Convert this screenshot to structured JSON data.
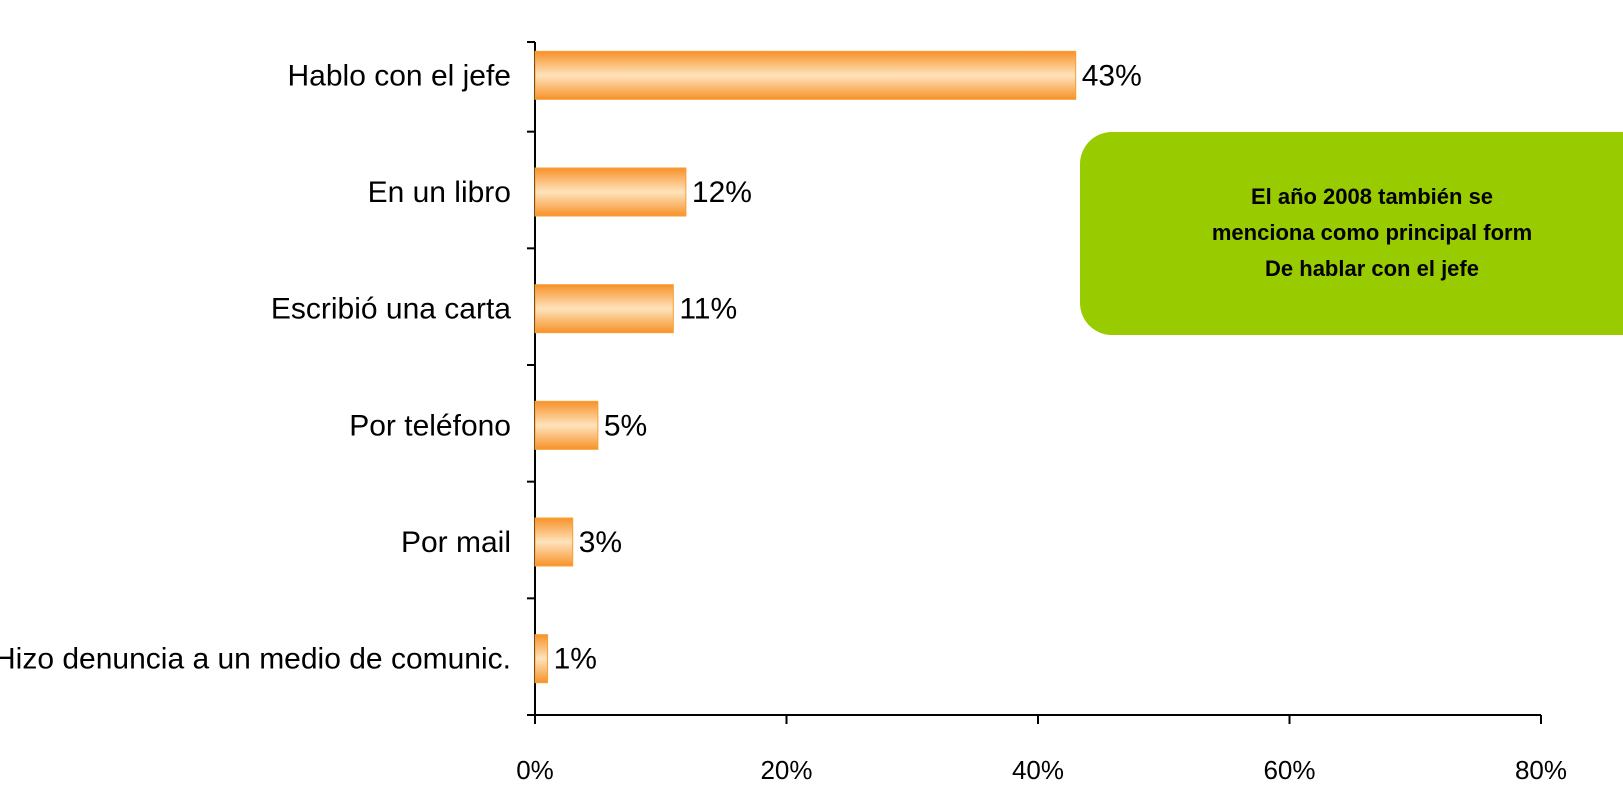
{
  "chart_data": {
    "type": "bar",
    "orientation": "horizontal",
    "categories": [
      "Hablo con el jefe",
      "En un libro",
      "Escribió una carta",
      "Por teléfono",
      "Por mail",
      "Hizo denuncia  a un medio de comunic."
    ],
    "values": [
      43,
      12,
      11,
      5,
      3,
      1
    ],
    "value_labels": [
      "43%",
      "12%",
      "11%",
      "5%",
      "3%",
      "1%"
    ],
    "color": "#f7a030",
    "xlim": [
      0,
      80
    ],
    "xticks": [
      {
        "value": 0,
        "label": "0%"
      },
      {
        "value": 20,
        "label": "20%"
      },
      {
        "value": 40,
        "label": "40%"
      },
      {
        "value": 60,
        "label": "60%"
      },
      {
        "value": 80,
        "label": "80%"
      }
    ],
    "annotation": [
      "El año 2008 también se",
      "menciona como principal form",
      "De hablar con el jefe"
    ],
    "annotation_color": "#99cc00"
  }
}
